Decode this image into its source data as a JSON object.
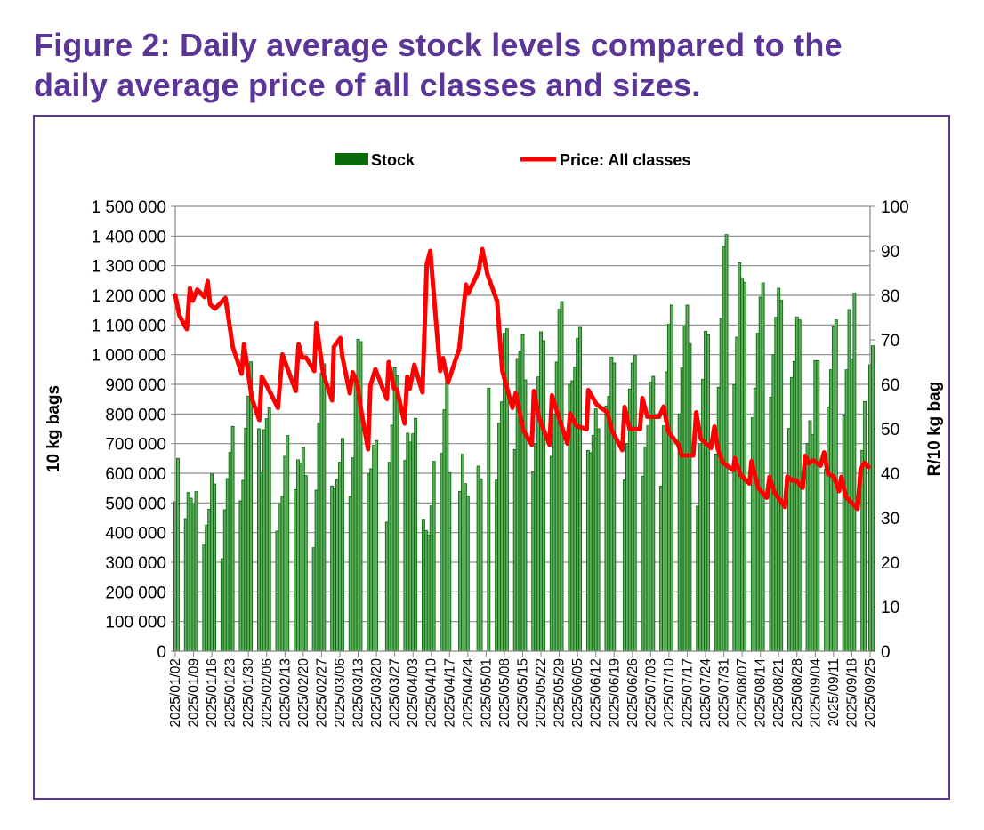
{
  "title_line1": "Figure 2: Daily average stock levels compared to the",
  "title_line2": "daily average price of all classes and sizes.",
  "chart_data": {
    "type": "bar+line",
    "title": "Figure 2: Daily average stock levels compared to the daily average price of all classes and sizes.",
    "legend": {
      "placement": "top",
      "stock_label": "Stock",
      "price_label": "Price: All classes"
    },
    "ylabel_left": "10 kg bags",
    "ylabel_right": "R/10 kg bag",
    "ylim_left": [
      0,
      1500000
    ],
    "ylim_right": [
      0,
      100
    ],
    "yticks_left": [
      "0",
      "100 000",
      "200 000",
      "300 000",
      "400 000",
      "500 000",
      "600 000",
      "700 000",
      "800 000",
      "900 000",
      "1 000 000",
      "1 100 000",
      "1 200 000",
      "1 300 000",
      "1 400 000",
      "1 500 000"
    ],
    "yticks_right": [
      "0",
      "10",
      "20",
      "30",
      "40",
      "50",
      "60",
      "70",
      "80",
      "90",
      "100"
    ],
    "xticks": [
      "2025/01/02",
      "2025/01/09",
      "2025/01/16",
      "2025/01/23",
      "2025/01/30",
      "2025/02/06",
      "2025/02/13",
      "2025/02/20",
      "2025/02/27",
      "2025/03/06",
      "2025/03/13",
      "2025/03/20",
      "2025/03/27",
      "2025/04/03",
      "2025/04/10",
      "2025/04/17",
      "2025/04/24",
      "2025/05/01",
      "2025/05/08",
      "2025/05/15",
      "2025/05/22",
      "2025/05/29",
      "2025/06/05",
      "2025/06/12",
      "2025/06/19",
      "2025/06/26",
      "2025/07/03",
      "2025/07/10",
      "2025/07/17",
      "2025/07/24",
      "2025/07/31",
      "2025/08/07",
      "2025/08/14",
      "2025/08/21",
      "2025/08/28",
      "2025/09/04",
      "2025/09/11",
      "2025/09/18",
      "2025/09/25"
    ],
    "x_start": "2025/01/02",
    "x_days_total": 266,
    "stock": {
      "name": "Stock",
      "color": "#0b6b0b",
      "unit": "thousand 10 kg bags",
      "week_start": "2024/12/30",
      "weeks_mon_to_fri": [
        [
          null,
          null,
          null,
          504,
          650
        ],
        [
          447,
          535,
          516,
          497,
          538
        ],
        [
          358,
          425,
          479,
          597,
          564
        ],
        [
          312,
          477,
          582,
          670,
          758
        ],
        [
          507,
          576,
          752,
          860,
          976
        ],
        [
          750,
          602,
          747,
          784,
          821
        ],
        [
          405,
          497,
          522,
          657,
          727
        ],
        [
          545,
          645,
          635,
          687,
          592
        ],
        [
          349,
          543,
          770,
          937,
          969
        ],
        [
          557,
          549,
          579,
          637,
          717
        ],
        [
          522,
          652,
          917,
          1052,
          1044
        ],
        [
          597,
          615,
          694,
          710,
          null
        ],
        [
          435,
          637,
          762,
          956,
          929
        ],
        [
          643,
          735,
          705,
          733,
          785
        ],
        [
          445,
          407,
          392,
          490,
          640
        ],
        [
          667,
          814,
          917,
          602,
          null
        ],
        [
          539,
          664,
          565,
          523,
          null
        ],
        [
          624,
          581,
          null,
          null,
          887
        ],
        [
          577,
          769,
          841,
          1072,
          1087
        ],
        [
          680,
          987,
          1012,
          1067,
          915
        ],
        [
          605,
          700,
          925,
          1077,
          1047
        ],
        [
          657,
          800,
          975,
          1153,
          1179
        ],
        [
          900,
          912,
          958,
          1055,
          1092
        ],
        [
          677,
          669,
          727,
          817,
          750
        ],
        [
          827,
          859,
          992,
          972,
          null
        ],
        [
          577,
          700,
          884,
          972,
          997
        ],
        [
          590,
          689,
          760,
          907,
          927
        ],
        [
          557,
          760,
          942,
          1102,
          1167
        ],
        [
          800,
          955,
          1097,
          1167,
          1037
        ],
        [
          489,
          700,
          917,
          1079,
          1067
        ],
        [
          665,
          890,
          1122,
          1365,
          1405
        ],
        [
          899,
          1059,
          1310,
          1259,
          1244
        ],
        [
          787,
          887,
          1072,
          1194,
          1242
        ],
        [
          857,
          1000,
          1126,
          1224,
          1183
        ],
        [
          751,
          923,
          977,
          1127,
          1117
        ],
        [
          700,
          777,
          730,
          980,
          980
        ],
        [
          614,
          824,
          949,
          1094,
          1117
        ],
        [
          794,
          949,
          1152,
          985,
          1207
        ],
        [
          677,
          842,
          null,
          966,
          1030
        ]
      ]
    },
    "price": {
      "name": "Price: All classes",
      "color": "#ff0000",
      "points_day_value": [
        [
          0,
          80
        ],
        [
          1.6,
          75.4
        ],
        [
          4.4,
          72.4
        ],
        [
          5.6,
          81.6
        ],
        [
          6.7,
          78.8
        ],
        [
          8.4,
          81.3
        ],
        [
          11.2,
          79.6
        ],
        [
          12.4,
          83.2
        ],
        [
          13.3,
          78
        ],
        [
          15.2,
          77
        ],
        [
          19.2,
          79.4
        ],
        [
          22,
          68.4
        ],
        [
          25.4,
          62.4
        ],
        [
          26.3,
          69
        ],
        [
          29.4,
          56.7
        ],
        [
          32.2,
          52
        ],
        [
          33.1,
          61.7
        ],
        [
          35,
          59.7
        ],
        [
          39.3,
          54.7
        ],
        [
          41,
          66.7
        ],
        [
          46.1,
          58.5
        ],
        [
          47.2,
          69
        ],
        [
          48.6,
          66
        ],
        [
          50.1,
          66
        ],
        [
          53.2,
          63
        ],
        [
          54,
          73.7
        ],
        [
          56.6,
          62.4
        ],
        [
          60,
          56.4
        ],
        [
          60.7,
          68.4
        ],
        [
          63.2,
          70.4
        ],
        [
          63.9,
          66.4
        ],
        [
          66.8,
          58
        ],
        [
          67.9,
          62.7
        ],
        [
          69.6,
          60.4
        ],
        [
          71.3,
          53.7
        ],
        [
          73.8,
          45.4
        ],
        [
          74.7,
          59.7
        ],
        [
          76.6,
          63.4
        ],
        [
          81,
          56.7
        ],
        [
          81.7,
          65
        ],
        [
          83.8,
          59
        ],
        [
          84.9,
          58.7
        ],
        [
          87.8,
          51.2
        ],
        [
          88.8,
          61.7
        ],
        [
          89.7,
          59
        ],
        [
          91.5,
          64.4
        ],
        [
          94.6,
          58.2
        ],
        [
          96.3,
          87
        ],
        [
          97.6,
          90
        ],
        [
          99.7,
          75
        ],
        [
          101.4,
          63
        ],
        [
          102.5,
          65.9
        ],
        [
          104.4,
          60.4
        ],
        [
          108.7,
          68
        ],
        [
          111.3,
          82.4
        ],
        [
          112.1,
          80.4
        ],
        [
          116.1,
          85.4
        ],
        [
          117.5,
          90.4
        ],
        [
          119.5,
          84.7
        ],
        [
          123.2,
          78.7
        ],
        [
          125.2,
          63
        ],
        [
          129.1,
          54.7
        ],
        [
          130.3,
          58
        ],
        [
          131.4,
          55
        ],
        [
          133.2,
          49.7
        ],
        [
          136.5,
          46.4
        ],
        [
          137.3,
          58.5
        ],
        [
          139.3,
          52.4
        ],
        [
          143.3,
          46.4
        ],
        [
          144.2,
          57.5
        ],
        [
          147.3,
          51.7
        ],
        [
          150.1,
          46.7
        ],
        [
          151.2,
          53.4
        ],
        [
          153.5,
          50.7
        ],
        [
          157.5,
          49.9
        ],
        [
          158.1,
          58.7
        ],
        [
          161.4,
          55.4
        ],
        [
          165.4,
          53.7
        ],
        [
          167.1,
          49.7
        ],
        [
          171.1,
          45.2
        ],
        [
          172,
          54.9
        ],
        [
          173.9,
          50
        ],
        [
          177.9,
          49.9
        ],
        [
          178.8,
          56.9
        ],
        [
          180.7,
          52.7
        ],
        [
          185.2,
          52.7
        ],
        [
          187,
          55
        ],
        [
          188.7,
          49.4
        ],
        [
          192.6,
          46.4
        ],
        [
          193.8,
          44
        ],
        [
          198.3,
          44
        ],
        [
          199.4,
          53.7
        ],
        [
          201.2,
          47.7
        ],
        [
          205.1,
          45.7
        ],
        [
          206.4,
          50.5
        ],
        [
          207.7,
          45.5
        ],
        [
          209.6,
          42.4
        ],
        [
          213.6,
          40.7
        ],
        [
          214.2,
          43.4
        ],
        [
          216.4,
          39.6
        ],
        [
          219.8,
          37.7
        ],
        [
          220.6,
          42.7
        ],
        [
          223.2,
          36.7
        ],
        [
          226.4,
          34.5
        ],
        [
          227.5,
          39.2
        ],
        [
          229.4,
          35.7
        ],
        [
          233.4,
          32.4
        ],
        [
          234.3,
          39.2
        ],
        [
          236.2,
          38.4
        ],
        [
          237.7,
          38.4
        ],
        [
          240.2,
          36.7
        ],
        [
          241.1,
          43.9
        ],
        [
          242.5,
          42.2
        ],
        [
          244.2,
          42.9
        ],
        [
          247,
          41.7
        ],
        [
          248.4,
          44.7
        ],
        [
          249.8,
          40
        ],
        [
          252.1,
          39.2
        ],
        [
          254.1,
          36
        ],
        [
          255,
          39.2
        ],
        [
          256.7,
          34.7
        ],
        [
          261.2,
          32
        ],
        [
          262.4,
          41
        ],
        [
          264.1,
          42.4
        ],
        [
          265.4,
          41.4
        ]
      ]
    }
  }
}
